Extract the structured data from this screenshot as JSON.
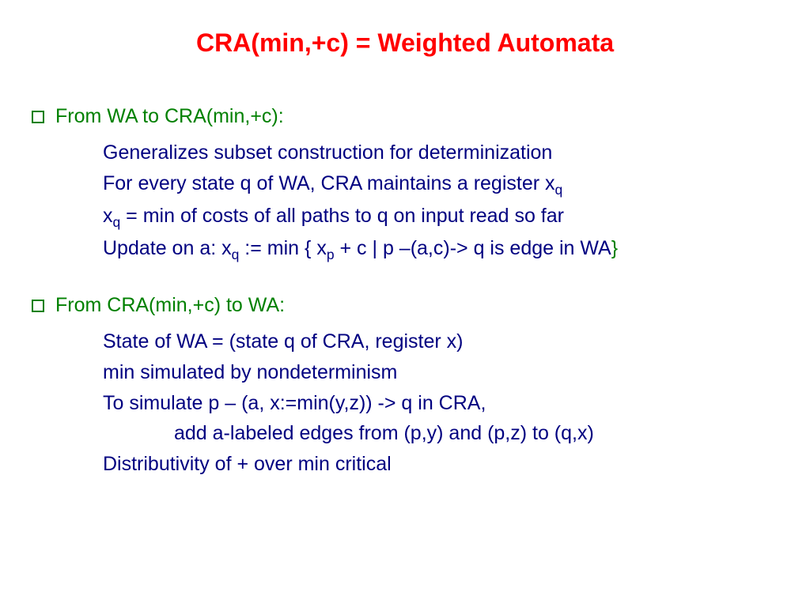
{
  "colors": {
    "title": "#ff0000",
    "section_header": "#008000",
    "body_text": "#000080",
    "bullet_border": "#008000",
    "trailing_brace": "#008000"
  },
  "title": "CRA(min,+c) = Weighted Automata",
  "slide": {
    "sections": [
      {
        "header": "From WA to CRA(min,+c):",
        "lines": [
          {
            "text": "Generalizes subset construction for determinization"
          },
          {
            "html": "For every state q of WA, CRA maintains a register x<span class='sub'>q</span>"
          },
          {
            "html": "x<span class='sub'>q</span> = min of costs of all paths to q on input read so far"
          },
          {
            "html": "Update on a: x<span class='sub'>q</span> := min { x<span class='sub'>p</span> + c | p –(a,c)-> q is edge in WA",
            "trailing_brace": "}"
          }
        ]
      },
      {
        "header": "From CRA(min,+c) to WA:",
        "lines": [
          {
            "text": "State of WA = (state q of CRA, register x)"
          },
          {
            "text": "min simulated by nondeterminism"
          },
          {
            "text": "To simulate p – (a, x:=min(y,z)) -> q  in CRA,"
          },
          {
            "text": "add a-labeled edges from (p,y) and (p,z) to (q,x)",
            "indent": true
          },
          {
            "text": "Distributivity of + over min critical"
          }
        ]
      }
    ]
  }
}
